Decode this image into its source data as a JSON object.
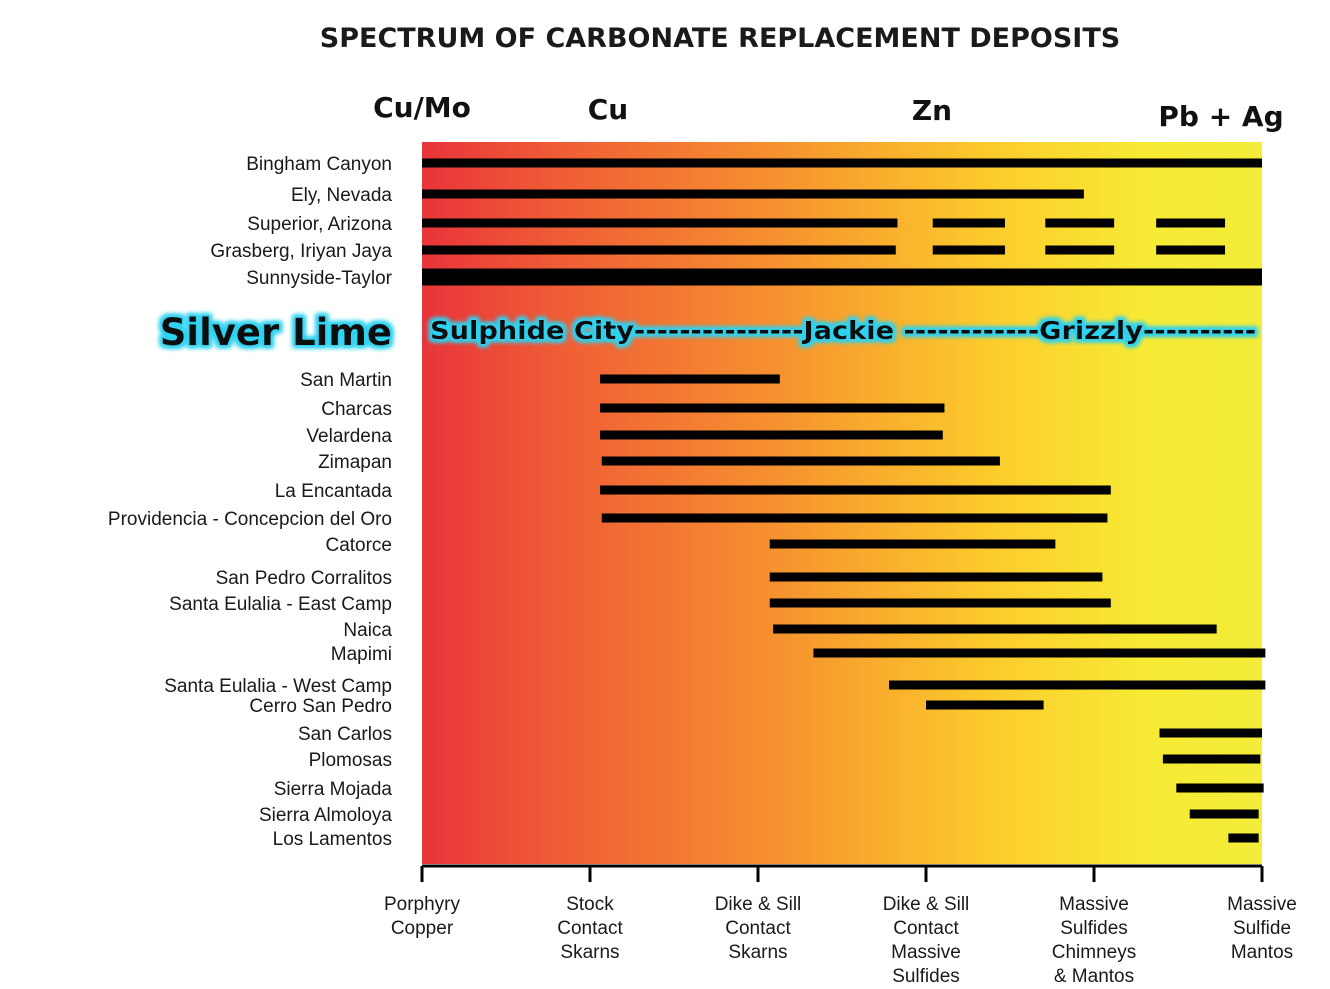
{
  "chart_data": {
    "type": "bar",
    "title": "SPECTRUM OF CARBONATE REPLACEMENT DEPOSITS",
    "metal_labels": [
      "Cu/Mo",
      "Cu",
      "Zn",
      "Pb + Ag"
    ],
    "gradient_colors": [
      "#e8343a",
      "#ef5a36",
      "#f6912f",
      "#fccc2c",
      "#f7ea34",
      "#f3ec38"
    ],
    "bar_color": "#000000",
    "glow_color": "#2fd2f0",
    "categories": [
      "Porphyry\nCopper",
      "Stock\nContact\nSkarns",
      "Dike & Sill\nContact\nSkarns",
      "Dike & Sill\nContact\nMassive\nSulfides",
      "Massive\nSulfides\nChimneys\n& Mantos",
      "Massive\nSulfide\nMantos"
    ],
    "xlim": [
      0,
      5
    ],
    "deposits_group1": [
      {
        "name": "Bingham Canyon",
        "segments": [
          [
            0,
            5
          ]
        ]
      },
      {
        "name": "Ely, Nevada",
        "segments": [
          [
            0,
            3.94
          ]
        ]
      },
      {
        "name": "Superior, Arizona",
        "segments": [
          [
            0,
            2.83
          ],
          [
            3.04,
            3.47
          ],
          [
            3.71,
            4.12
          ],
          [
            4.37,
            4.78
          ]
        ]
      },
      {
        "name": "Grasberg, Iriyan Jaya",
        "segments": [
          [
            0,
            2.82
          ],
          [
            3.04,
            3.47
          ],
          [
            3.71,
            4.12
          ],
          [
            4.37,
            4.78
          ]
        ]
      },
      {
        "name": "Sunnyside-Taylor",
        "segments": [
          [
            0,
            5
          ]
        ]
      }
    ],
    "highlight": {
      "label": "Silver Lime",
      "text": "Sulphide City---------------Jackie ------------Grizzly----------"
    },
    "deposits_group2": [
      {
        "name": "San Martin",
        "segments": [
          [
            1.06,
            2.13
          ]
        ]
      },
      {
        "name": "Charcas",
        "segments": [
          [
            1.06,
            3.11
          ]
        ]
      },
      {
        "name": "Velardena",
        "segments": [
          [
            1.06,
            3.1
          ]
        ]
      },
      {
        "name": "Zimapan",
        "segments": [
          [
            1.07,
            3.44
          ]
        ]
      },
      {
        "name": "La Encantada",
        "segments": [
          [
            1.06,
            4.1
          ]
        ]
      },
      {
        "name": "Providencia - Concepcion del Oro",
        "segments": [
          [
            1.07,
            4.08
          ]
        ]
      },
      {
        "name": "Catorce",
        "segments": [
          [
            2.07,
            3.77
          ]
        ]
      },
      {
        "name": "San Pedro Corralitos",
        "segments": [
          [
            2.07,
            4.05
          ]
        ]
      },
      {
        "name": "Santa Eulalia - East Camp",
        "segments": [
          [
            2.07,
            4.1
          ]
        ]
      },
      {
        "name": "Naica",
        "segments": [
          [
            2.09,
            4.73
          ]
        ]
      },
      {
        "name": "Mapimi",
        "segments": [
          [
            2.33,
            5.02
          ]
        ]
      },
      {
        "name": "Santa Eulalia - West Camp",
        "segments": [
          [
            2.78,
            5.02
          ]
        ]
      },
      {
        "name": "Cerro San Pedro",
        "segments": [
          [
            3.0,
            3.7
          ]
        ]
      },
      {
        "name": "San Carlos",
        "segments": [
          [
            4.39,
            5.0
          ]
        ]
      },
      {
        "name": "Plomosas",
        "segments": [
          [
            4.41,
            4.99
          ]
        ]
      },
      {
        "name": "Sierra Mojada",
        "segments": [
          [
            4.49,
            5.01
          ]
        ]
      },
      {
        "name": "Sierra Almoloya",
        "segments": [
          [
            4.57,
            4.98
          ]
        ]
      },
      {
        "name": "Los Lamentos",
        "segments": [
          [
            4.8,
            4.98
          ]
        ]
      }
    ]
  }
}
